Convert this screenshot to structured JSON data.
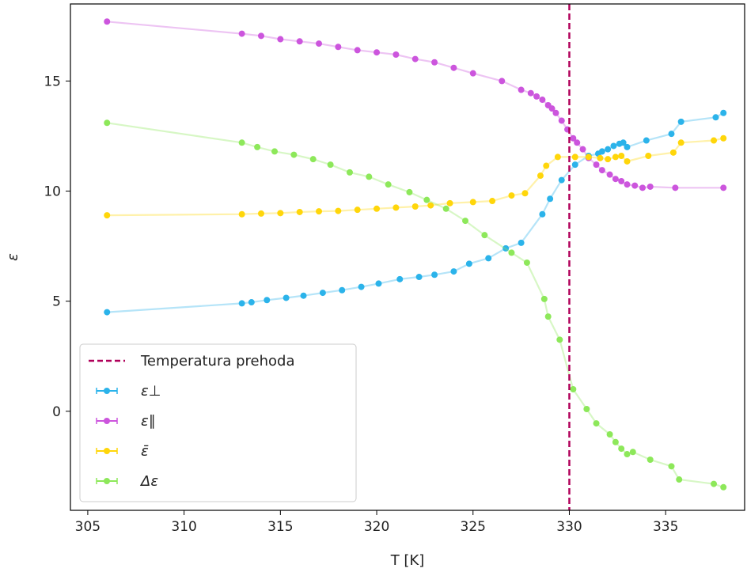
{
  "chart_data": {
    "type": "line",
    "xlabel": "T [K]",
    "ylabel": "ε",
    "xlim": [
      304.1,
      339.1
    ],
    "ylim": [
      -4.5,
      18.5
    ],
    "xticks": [
      305,
      310,
      315,
      320,
      325,
      330,
      335
    ],
    "yticks": [
      0,
      5,
      10,
      15
    ],
    "grid": false,
    "legend_position": "lower-left",
    "vline": {
      "x": 330,
      "label": "Temperatura prehoda",
      "color": "#b0005a"
    },
    "series": [
      {
        "name": "ε⊥",
        "color": "#2bb3ea",
        "points": [
          [
            306,
            4.5
          ],
          [
            313,
            4.9
          ],
          [
            313.5,
            4.95
          ],
          [
            314.3,
            5.05
          ],
          [
            315.3,
            5.15
          ],
          [
            316.2,
            5.25
          ],
          [
            317.2,
            5.38
          ],
          [
            318.2,
            5.5
          ],
          [
            319.2,
            5.65
          ],
          [
            320.1,
            5.8
          ],
          [
            321.2,
            6.0
          ],
          [
            322.2,
            6.1
          ],
          [
            323,
            6.2
          ],
          [
            324,
            6.35
          ],
          [
            324.8,
            6.7
          ],
          [
            325.8,
            6.95
          ],
          [
            326.7,
            7.4
          ],
          [
            327.5,
            7.65
          ],
          [
            328.6,
            8.95
          ],
          [
            329,
            9.65
          ],
          [
            329.6,
            10.5
          ],
          [
            330.3,
            11.2
          ],
          [
            331,
            11.6
          ],
          [
            331.5,
            11.7
          ],
          [
            331.7,
            11.8
          ],
          [
            332,
            11.9
          ],
          [
            332.3,
            12.05
          ],
          [
            332.6,
            12.15
          ],
          [
            332.8,
            12.2
          ],
          [
            333,
            12.0
          ],
          [
            334,
            12.3
          ],
          [
            335.3,
            12.6
          ],
          [
            335.8,
            13.15
          ],
          [
            337.6,
            13.35
          ],
          [
            338,
            13.55
          ]
        ]
      },
      {
        "name": "ε∥",
        "color": "#cc55dd",
        "points": [
          [
            306,
            17.7
          ],
          [
            313,
            17.15
          ],
          [
            314,
            17.05
          ],
          [
            315,
            16.9
          ],
          [
            316,
            16.8
          ],
          [
            317,
            16.7
          ],
          [
            318,
            16.55
          ],
          [
            319,
            16.4
          ],
          [
            320,
            16.3
          ],
          [
            321,
            16.2
          ],
          [
            322,
            16.0
          ],
          [
            323,
            15.85
          ],
          [
            324,
            15.6
          ],
          [
            325,
            15.35
          ],
          [
            326.5,
            15.0
          ],
          [
            327.5,
            14.6
          ],
          [
            328,
            14.45
          ],
          [
            328.3,
            14.3
          ],
          [
            328.6,
            14.15
          ],
          [
            328.9,
            13.9
          ],
          [
            329.1,
            13.75
          ],
          [
            329.3,
            13.55
          ],
          [
            329.6,
            13.2
          ],
          [
            329.9,
            12.8
          ],
          [
            330.2,
            12.4
          ],
          [
            330.4,
            12.2
          ],
          [
            330.7,
            11.9
          ],
          [
            331,
            11.5
          ],
          [
            331.4,
            11.2
          ],
          [
            331.7,
            10.95
          ],
          [
            332.1,
            10.75
          ],
          [
            332.4,
            10.55
          ],
          [
            332.7,
            10.45
          ],
          [
            333,
            10.3
          ],
          [
            333.4,
            10.25
          ],
          [
            333.8,
            10.15
          ],
          [
            334.2,
            10.2
          ],
          [
            335.5,
            10.15
          ],
          [
            338,
            10.15
          ]
        ]
      },
      {
        "name": "ε̄",
        "color": "#ffd60a",
        "points": [
          [
            306,
            8.9
          ],
          [
            313,
            8.95
          ],
          [
            314,
            8.98
          ],
          [
            315,
            9.0
          ],
          [
            316,
            9.05
          ],
          [
            317,
            9.08
          ],
          [
            318,
            9.1
          ],
          [
            319,
            9.15
          ],
          [
            320,
            9.2
          ],
          [
            321,
            9.25
          ],
          [
            322,
            9.3
          ],
          [
            322.8,
            9.35
          ],
          [
            323.8,
            9.45
          ],
          [
            325,
            9.5
          ],
          [
            326,
            9.55
          ],
          [
            327,
            9.8
          ],
          [
            327.7,
            9.9
          ],
          [
            328.5,
            10.7
          ],
          [
            328.8,
            11.15
          ],
          [
            329.4,
            11.55
          ],
          [
            330.3,
            11.55
          ],
          [
            331,
            11.55
          ],
          [
            331.6,
            11.5
          ],
          [
            332,
            11.45
          ],
          [
            332.4,
            11.55
          ],
          [
            332.7,
            11.6
          ],
          [
            333,
            11.35
          ],
          [
            334.1,
            11.6
          ],
          [
            335.4,
            11.75
          ],
          [
            335.8,
            12.2
          ],
          [
            337.5,
            12.3
          ],
          [
            338,
            12.4
          ]
        ]
      },
      {
        "name": "Δε",
        "color": "#8de85a",
        "points": [
          [
            306,
            13.1
          ],
          [
            313,
            12.2
          ],
          [
            313.8,
            12.0
          ],
          [
            314.7,
            11.8
          ],
          [
            315.7,
            11.65
          ],
          [
            316.7,
            11.45
          ],
          [
            317.6,
            11.2
          ],
          [
            318.6,
            10.85
          ],
          [
            319.6,
            10.65
          ],
          [
            320.6,
            10.3
          ],
          [
            321.7,
            9.95
          ],
          [
            322.6,
            9.6
          ],
          [
            323.6,
            9.2
          ],
          [
            324.6,
            8.65
          ],
          [
            325.6,
            8.0
          ],
          [
            327,
            7.2
          ],
          [
            327.8,
            6.75
          ],
          [
            328.7,
            5.1
          ],
          [
            328.9,
            4.3
          ],
          [
            329.5,
            3.25
          ],
          [
            330.2,
            1.0
          ],
          [
            330.9,
            0.1
          ],
          [
            331.4,
            -0.55
          ],
          [
            332.1,
            -1.05
          ],
          [
            332.4,
            -1.4
          ],
          [
            332.7,
            -1.7
          ],
          [
            333,
            -1.95
          ],
          [
            333.3,
            -1.85
          ],
          [
            334.2,
            -2.2
          ],
          [
            335.3,
            -2.5
          ],
          [
            335.7,
            -3.1
          ],
          [
            337.5,
            -3.3
          ],
          [
            338,
            -3.45
          ]
        ]
      }
    ]
  },
  "legend": {
    "entries": [
      "Temperatura prehoda",
      "ε⊥",
      "ε∥",
      "ε̄",
      "Δε"
    ]
  }
}
